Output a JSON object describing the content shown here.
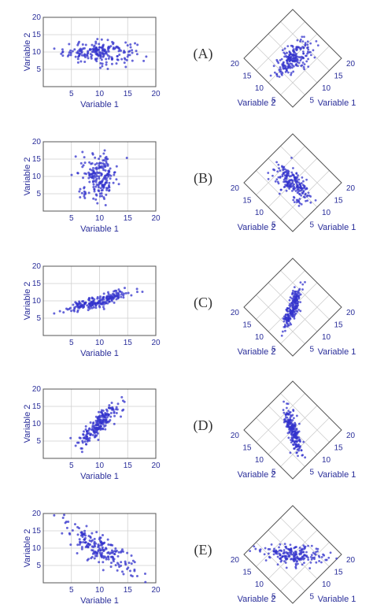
{
  "colors": {
    "point": "#3333cc",
    "text": "#2a2e9a",
    "grid": "#cfcfcf",
    "frame": "#555555"
  },
  "chart_data": [
    {
      "id": "A",
      "type": "scatter",
      "row_label": "(A)",
      "xlabel": "Variable 1",
      "ylabel": "Variable 2",
      "xticks": [
        "5",
        "10",
        "15",
        "20"
      ],
      "yticks": [
        "5",
        "10",
        "15",
        "20"
      ],
      "xlim": [
        0,
        20
      ],
      "ylim": [
        0,
        20
      ],
      "n_points": 200,
      "params": {
        "mx": 10,
        "my": 10,
        "sx": 3.2,
        "sy": 1.6,
        "r": 0.0
      },
      "rotated": {
        "ticks_left": [
          "20",
          "15",
          "10",
          "5"
        ],
        "ticks_right": [
          "20",
          "15",
          "10",
          "5"
        ],
        "xlabel": "Variable 1",
        "ylabel": "Variable 2"
      }
    },
    {
      "id": "B",
      "type": "scatter",
      "row_label": "(B)",
      "xlabel": "Variable 1",
      "ylabel": "Variable 2",
      "xticks": [
        "5",
        "10",
        "15",
        "20"
      ],
      "yticks": [
        "5",
        "10",
        "15",
        "20"
      ],
      "xlim": [
        0,
        20
      ],
      "ylim": [
        0,
        20
      ],
      "n_points": 200,
      "params": {
        "mx": 10,
        "my": 10,
        "sx": 1.6,
        "sy": 3.2,
        "r": 0.0
      },
      "rotated": {
        "ticks_left": [
          "20",
          "15",
          "10",
          "5"
        ],
        "ticks_right": [
          "20",
          "15",
          "10",
          "5"
        ],
        "xlabel": "Variable 1",
        "ylabel": "Variable 2"
      }
    },
    {
      "id": "C",
      "type": "scatter",
      "row_label": "(C)",
      "xlabel": "Variable 1",
      "ylabel": "Variable 2",
      "xticks": [
        "5",
        "10",
        "15",
        "20"
      ],
      "yticks": [
        "5",
        "10",
        "15",
        "20"
      ],
      "xlim": [
        0,
        20
      ],
      "ylim": [
        0,
        20
      ],
      "n_points": 200,
      "params": {
        "mx": 10,
        "my": 10,
        "sx": 3.0,
        "sy": 1.6,
        "r": 0.85
      },
      "rotated": {
        "ticks_left": [
          "20",
          "15",
          "10",
          "5"
        ],
        "ticks_right": [
          "20",
          "15",
          "10",
          "5"
        ],
        "xlabel": "Variable 1",
        "ylabel": "Variable 2"
      }
    },
    {
      "id": "D",
      "type": "scatter",
      "row_label": "(D)",
      "xlabel": "Variable 1",
      "ylabel": "Variable 2",
      "xticks": [
        "5",
        "10",
        "15",
        "20"
      ],
      "yticks": [
        "5",
        "10",
        "15",
        "20"
      ],
      "xlim": [
        0,
        20
      ],
      "ylim": [
        0,
        20
      ],
      "n_points": 200,
      "params": {
        "mx": 10,
        "my": 10,
        "sx": 1.8,
        "sy": 3.2,
        "r": 0.85
      },
      "rotated": {
        "ticks_left": [
          "20",
          "15",
          "10",
          "5"
        ],
        "ticks_right": [
          "20",
          "15",
          "10",
          "5"
        ],
        "xlabel": "Variable 1",
        "ylabel": "Variable 2"
      }
    },
    {
      "id": "E",
      "type": "scatter",
      "row_label": "(E)",
      "xlabel": "Variable 1",
      "ylabel": "Variable 2",
      "xticks": [
        "5",
        "10",
        "15",
        "20"
      ],
      "yticks": [
        "5",
        "10",
        "15",
        "20"
      ],
      "xlim": [
        0,
        20
      ],
      "ylim": [
        0,
        20
      ],
      "n_points": 200,
      "params": {
        "mx": 10,
        "my": 10,
        "sx": 3.0,
        "sy": 3.4,
        "r": -0.8
      },
      "rotated": {
        "ticks_left": [
          "20",
          "15",
          "10",
          "5"
        ],
        "ticks_right": [
          "20",
          "15",
          "10",
          "5"
        ],
        "xlabel": "Variable 1",
        "ylabel": "Variable 2"
      }
    }
  ]
}
